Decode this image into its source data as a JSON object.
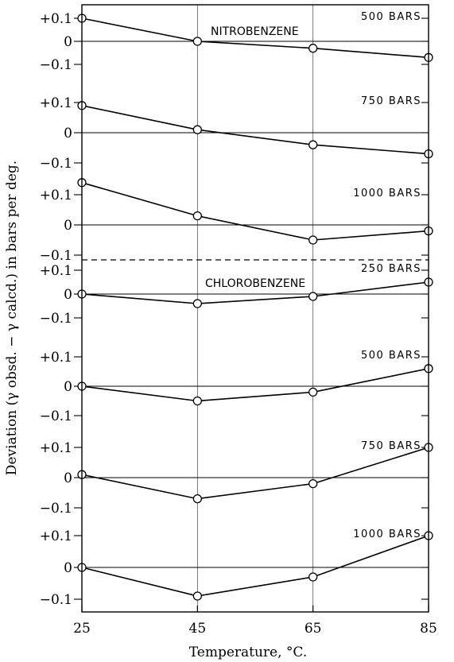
{
  "chart_data": {
    "type": "line",
    "xlabel": "Temperature, °C.",
    "ylabel": "Deviation (γ obsd. − γ calcd.) in bars per deg.",
    "x": [
      25,
      45,
      65,
      85
    ],
    "x_tick_labels": [
      "25",
      "45",
      "65",
      "85"
    ],
    "y_tick_labels": [
      "+0.1",
      "0",
      "−0.1"
    ],
    "ylim": [
      -0.1,
      0.1
    ],
    "grid": true,
    "groups": [
      {
        "name": "NITROBENZENE",
        "panels": [
          0,
          1,
          2
        ]
      },
      {
        "name": "CHLOROBENZENE",
        "panels": [
          3,
          4,
          5,
          6
        ]
      }
    ],
    "panels": [
      {
        "label": "500 BARS",
        "values": [
          0.1,
          0.0,
          -0.03,
          -0.07
        ]
      },
      {
        "label": "750 BARS",
        "values": [
          0.09,
          0.01,
          -0.04,
          -0.07
        ]
      },
      {
        "label": "1000 BARS",
        "values": [
          0.14,
          0.03,
          -0.05,
          -0.02
        ]
      },
      {
        "label": "250 BARS",
        "values": [
          0.0,
          -0.04,
          -0.01,
          0.05
        ]
      },
      {
        "label": "500 BARS",
        "values": [
          0.0,
          -0.05,
          -0.02,
          0.06
        ]
      },
      {
        "label": "750 BARS",
        "values": [
          0.01,
          -0.07,
          -0.02,
          0.1
        ]
      },
      {
        "label": "1000 BARS",
        "values": [
          0.0,
          -0.09,
          -0.03,
          0.1
        ]
      }
    ]
  }
}
